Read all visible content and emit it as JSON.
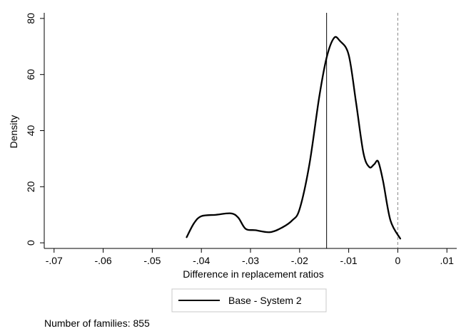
{
  "chart_data": {
    "type": "line",
    "title": "",
    "xlabel": "Difference in replacement ratios",
    "ylabel": "Density",
    "xlim": [
      -0.072,
      0.012
    ],
    "ylim": [
      -2,
      82
    ],
    "x_ticks": [
      -0.07,
      -0.06,
      -0.05,
      -0.04,
      -0.03,
      -0.02,
      -0.01,
      0,
      0.01
    ],
    "x_tick_labels": [
      "-.07",
      "-.06",
      "-.05",
      "-.04",
      "-.03",
      "-.02",
      "-.01",
      "0",
      ".01"
    ],
    "y_ticks": [
      0,
      20,
      40,
      60,
      80
    ],
    "y_tick_labels": [
      "0",
      "20",
      "40",
      "60",
      "80"
    ],
    "grid": false,
    "legend_position": "bottom",
    "series": [
      {
        "name": "Base - System 2",
        "x": [
          -0.043,
          -0.0415,
          -0.04,
          -0.037,
          -0.034,
          -0.0325,
          -0.031,
          -0.029,
          -0.026,
          -0.0235,
          -0.0215,
          -0.02,
          -0.018,
          -0.016,
          -0.0145,
          -0.013,
          -0.0118,
          -0.01,
          -0.0085,
          -0.007,
          -0.0058,
          -0.0048,
          -0.004,
          -0.003,
          -0.0015,
          0.0005
        ],
        "y": [
          2,
          7,
          9.5,
          10,
          10.5,
          9,
          5,
          4.5,
          3.8,
          5.5,
          8,
          12,
          28,
          52,
          66,
          73,
          72,
          67,
          50,
          32,
          27,
          28,
          29,
          22,
          8,
          1.5
        ]
      }
    ],
    "reference_lines": [
      {
        "x": -0.0145,
        "style": "solid"
      },
      {
        "x": 0,
        "style": "dashed"
      }
    ],
    "note": "Number of families: 855"
  }
}
